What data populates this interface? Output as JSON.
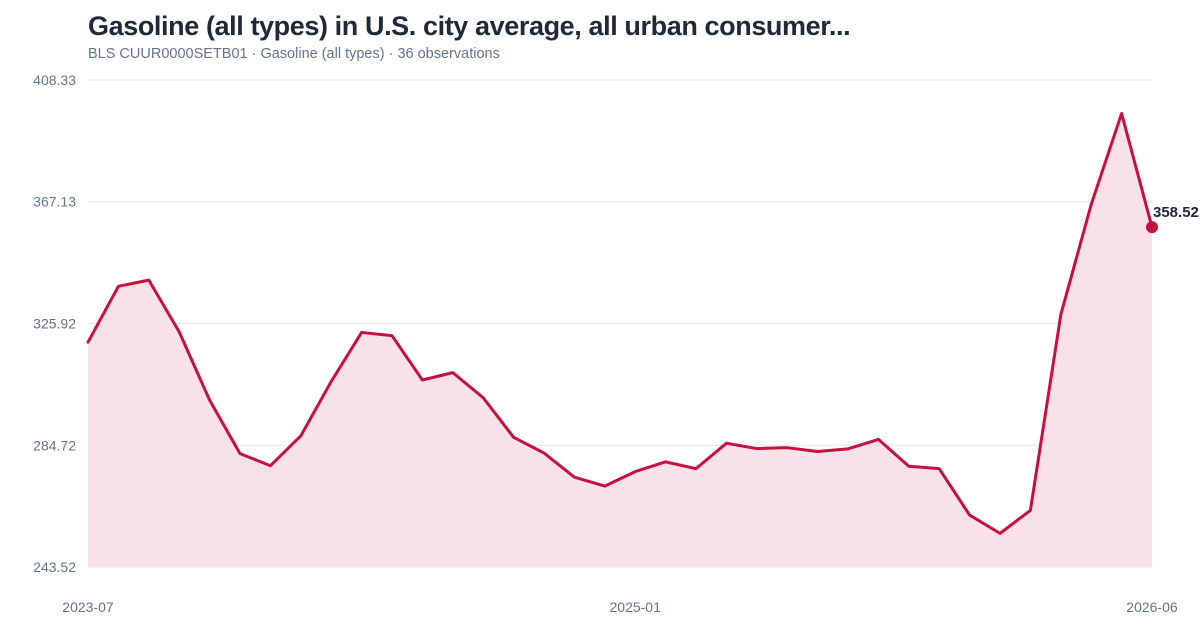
{
  "chart_data": {
    "type": "area",
    "title": "Gasoline (all types) in U.S. city average, all urban consumer...",
    "subtitle": "BLS CUUR0000SETB01 · Gasoline (all types) · 36 observations",
    "x": [
      "2023-07",
      "2023-08",
      "2023-09",
      "2023-10",
      "2023-11",
      "2023-12",
      "2024-01",
      "2024-02",
      "2024-03",
      "2024-04",
      "2024-05",
      "2024-06",
      "2024-07",
      "2024-08",
      "2024-09",
      "2024-10",
      "2024-11",
      "2024-12",
      "2025-01",
      "2025-02",
      "2025-03",
      "2025-04",
      "2025-05",
      "2025-06",
      "2025-07",
      "2025-08",
      "2025-09",
      "2025-10",
      "2025-11",
      "2025-12",
      "2026-01",
      "2026-02",
      "2026-03",
      "2026-04",
      "2026-05",
      "2026-06"
    ],
    "values": [
      319.6,
      338.5,
      340.6,
      323.1,
      300.0,
      281.9,
      277.8,
      287.9,
      306.3,
      322.9,
      321.8,
      306.8,
      309.3,
      300.8,
      287.4,
      282.1,
      273.9,
      270.9,
      275.8,
      279.1,
      276.8,
      285.4,
      283.6,
      283.9,
      282.6,
      283.5,
      286.7,
      277.6,
      276.8,
      261.1,
      254.9,
      262.7,
      328.9,
      366.2,
      397.0,
      358.52
    ],
    "y_ticks": [
      "408.33",
      "367.13",
      "325.92",
      "284.72",
      "243.52"
    ],
    "ylim": [
      243.52,
      408.33
    ],
    "x_ticks": [
      {
        "label": "2023-07",
        "index": 0
      },
      {
        "label": "2025-01",
        "index": 18
      },
      {
        "label": "2026-06",
        "index": 35
      }
    ],
    "last_value_label": "358.52",
    "grid": true,
    "legend": "none",
    "colors": {
      "line": "#c8103e",
      "fill": "#f8e1e8",
      "grid": "#e5e7eb",
      "axis_text": "#64748b"
    }
  }
}
